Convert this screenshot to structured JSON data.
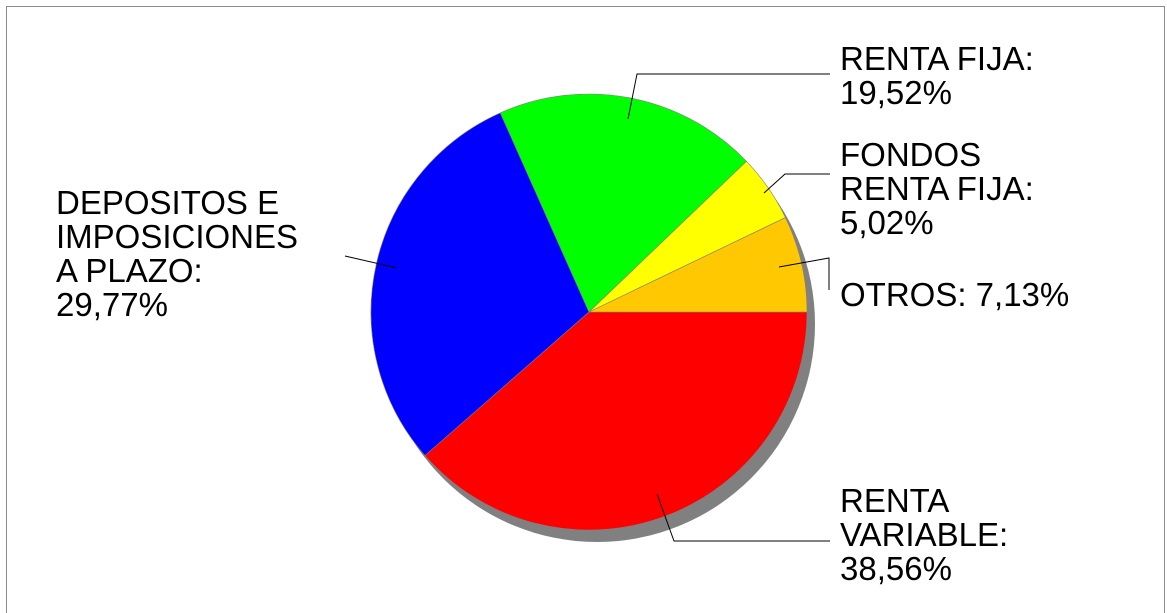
{
  "chart_data": {
    "type": "pie",
    "slices": [
      {
        "label_lines": [
          "RENTA",
          "VARIABLE:",
          "38,56%"
        ],
        "value": 38.56,
        "color": "#ff0000"
      },
      {
        "label_lines": [
          "DEPOSITOS E",
          "IMPOSICIONES",
          "A PLAZO:",
          "29,77%"
        ],
        "value": 29.77,
        "color": "#0000ff"
      },
      {
        "label_lines": [
          "RENTA FIJA:",
          "19,52%"
        ],
        "value": 19.52,
        "color": "#00ff00"
      },
      {
        "label_lines": [
          "FONDOS",
          "RENTA FIJA:",
          "5,02%"
        ],
        "value": 5.02,
        "color": "#ffff00"
      },
      {
        "label_lines": [
          "OTROS: 7,13%"
        ],
        "value": 7.13,
        "color": "#ffc800"
      }
    ],
    "shadow_color": "#808080"
  }
}
